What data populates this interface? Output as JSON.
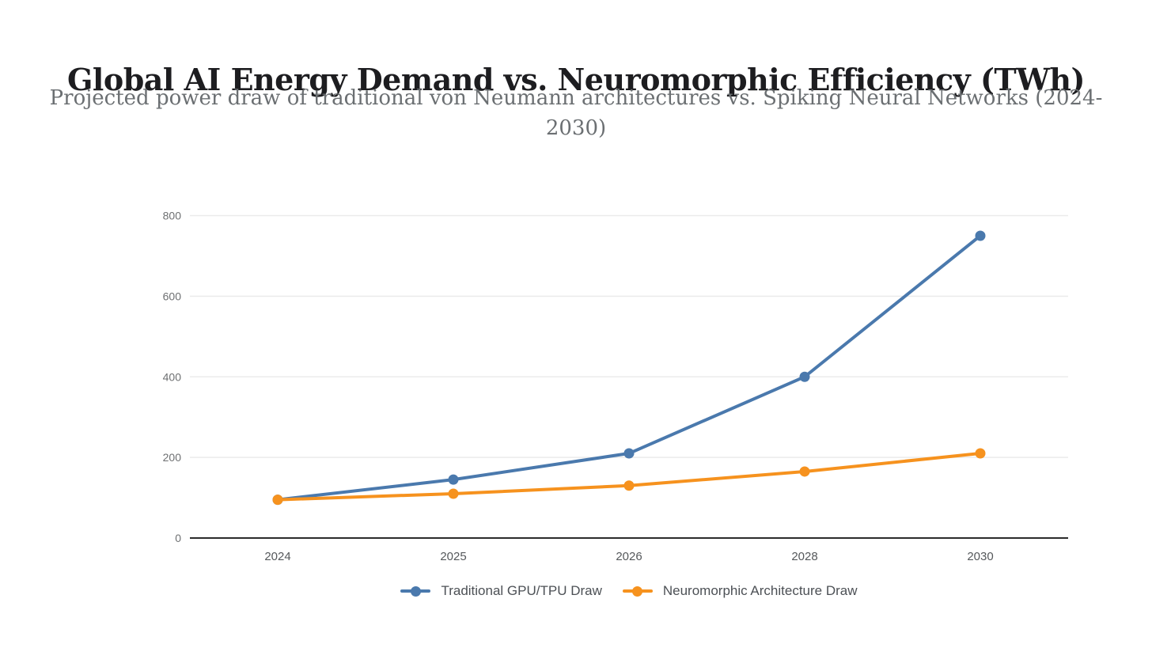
{
  "header": {
    "title": "Global AI Energy Demand vs. Neuromorphic Efficiency (TWh)",
    "subtitle": "Projected power draw of traditional von Neumann architectures vs. Spiking Neural Networks (2024-2030)",
    "subtitle_line1": "Projected power draw of traditional von Neumann architectures vs. Spiking Neural Networks (2024-",
    "subtitle_line2": "2030)"
  },
  "chart_data": {
    "type": "line",
    "title": "Global AI Energy Demand vs. Neuromorphic Efficiency (TWh)",
    "subtitle": "Projected power draw of traditional von Neumann architectures vs. Spiking Neural Networks (2024-2030)",
    "categories": [
      "2024",
      "2025",
      "2026",
      "2028",
      "2030"
    ],
    "series": [
      {
        "name": "Traditional GPU/TPU Draw",
        "values": [
          95,
          145,
          210,
          400,
          750
        ],
        "color": "#4A79AD"
      },
      {
        "name": "Neuromorphic Architecture Draw",
        "values": [
          95,
          110,
          130,
          165,
          210
        ],
        "color": "#F6921E"
      }
    ],
    "xlabel": "",
    "ylabel": "",
    "ylim": [
      0,
      800
    ],
    "yticks": [
      0,
      200,
      400,
      600,
      800
    ],
    "grid": true,
    "legend_position": "bottom",
    "colors": {
      "axis": "#2c2c2c",
      "gridline": "#ebebeb",
      "y_tick_text": "#6e7072",
      "x_tick_text": "#55585b"
    }
  }
}
